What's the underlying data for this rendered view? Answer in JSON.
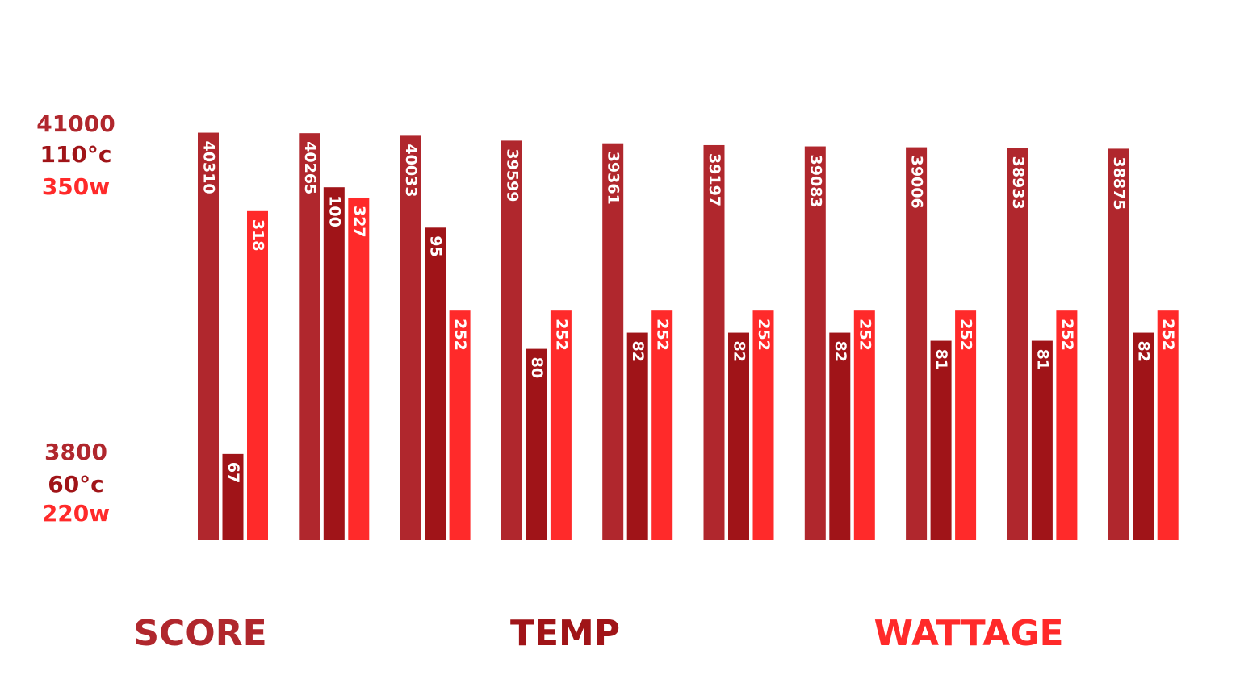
{
  "chart_data": {
    "type": "bar",
    "categories": [
      null,
      null,
      null,
      null,
      null,
      null,
      null,
      null,
      null,
      null
    ],
    "series": [
      {
        "name": "SCORE",
        "color": "#b0272d",
        "values": [
          40310,
          40265,
          40033,
          39599,
          39361,
          39197,
          39083,
          39006,
          38933,
          38875
        ],
        "ylim": [
          3800,
          41000
        ],
        "yticks": [
          3800,
          41000
        ]
      },
      {
        "name": "TEMP",
        "color": "#a01418",
        "values": [
          67,
          100,
          95,
          80,
          82,
          82,
          82,
          81,
          81,
          82
        ],
        "ylim": [
          60,
          110
        ],
        "yticks": [
          {
            "value": 60,
            "label": "60°c"
          },
          {
            "value": 110,
            "label": "110°c"
          }
        ]
      },
      {
        "name": "WATTAGE",
        "color": "#ff2a2a",
        "values": [
          318,
          327,
          252,
          252,
          252,
          252,
          252,
          252,
          252,
          252
        ],
        "ylim": [
          220,
          350
        ],
        "yticks": [
          {
            "value": 220,
            "label": "220w"
          },
          {
            "value": 350,
            "label": "350w"
          }
        ]
      }
    ]
  }
}
